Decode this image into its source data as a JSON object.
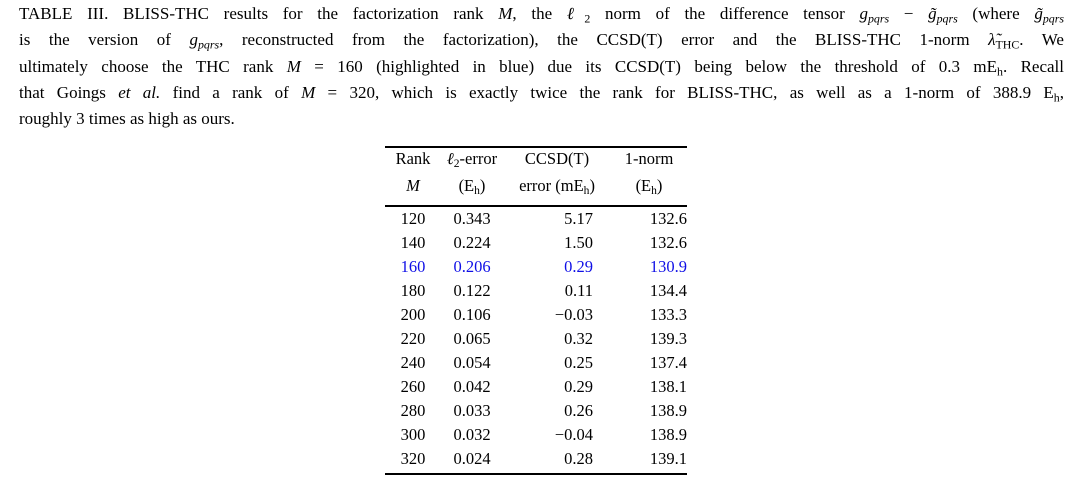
{
  "colors": {
    "background": "#ffffff",
    "text": "#000000",
    "rule": "#000000",
    "highlight_blue": "#0f0fe6"
  },
  "caption": {
    "lines": [
      {
        "justify": true,
        "segments": [
          {
            "t": "TABLE III. BLISS-THC results for the factorization rank "
          },
          {
            "t": "M",
            "s": "i"
          },
          {
            "t": ", the "
          },
          {
            "t": "ℓ",
            "s": "i"
          },
          {
            "t": "2",
            "s": "sub"
          },
          {
            "t": " norm of the difference tensor "
          },
          {
            "t": "g",
            "s": "i"
          },
          {
            "t": "pqrs",
            "s": "isub"
          },
          {
            "t": " − "
          },
          {
            "t": "g̃",
            "s": "i"
          },
          {
            "t": "pqrs",
            "s": "isub"
          },
          {
            "t": " (where "
          },
          {
            "t": "g̃",
            "s": "i"
          },
          {
            "t": "pqrs",
            "s": "isub"
          }
        ]
      },
      {
        "justify": true,
        "segments": [
          {
            "t": "is the version of "
          },
          {
            "t": "g",
            "s": "i"
          },
          {
            "t": "pqrs",
            "s": "isub"
          },
          {
            "t": ", reconstructed from the factorization), the CCSD(T) error and the BLISS-THC 1-norm "
          },
          {
            "t": "λ̃",
            "s": "i"
          },
          {
            "t": "THC",
            "s": "sub"
          },
          {
            "t": ". We"
          }
        ]
      },
      {
        "justify": true,
        "segments": [
          {
            "t": "ultimately choose the THC rank "
          },
          {
            "t": "M",
            "s": "i"
          },
          {
            "t": " = 160 (highlighted in blue) due its CCSD(T) being below the threshold of 0.3 mE"
          },
          {
            "t": "h",
            "s": "sub"
          },
          {
            "t": ". Recall"
          }
        ]
      },
      {
        "justify": true,
        "segments": [
          {
            "t": "that Goings "
          },
          {
            "t": "et al.",
            "s": "i"
          },
          {
            "t": " find a rank of "
          },
          {
            "t": "M",
            "s": "i"
          },
          {
            "t": " = 320, which is exactly twice the rank for BLISS-THC, as well as a 1-norm of 388.9 E"
          },
          {
            "t": "h",
            "s": "sub"
          },
          {
            "t": ","
          }
        ]
      },
      {
        "justify": false,
        "segments": [
          {
            "t": "roughly 3 times as high as ours."
          }
        ]
      }
    ]
  },
  "table": {
    "header": {
      "columns": [
        {
          "name": "rank",
          "line1": [
            {
              "t": "Rank"
            }
          ],
          "line2": [
            {
              "t": "M",
              "s": "i"
            }
          ]
        },
        {
          "name": "l2-error",
          "line1": [
            {
              "t": "ℓ",
              "s": "i"
            },
            {
              "t": "2",
              "s": "sub"
            },
            {
              "t": "-error"
            }
          ],
          "line2": [
            {
              "t": "(E"
            },
            {
              "t": "h",
              "s": "sub"
            },
            {
              "t": ")"
            }
          ]
        },
        {
          "name": "ccsdt-error",
          "line1": [
            {
              "t": "CCSD(T)"
            }
          ],
          "line2": [
            {
              "t": "error (mE"
            },
            {
              "t": "h",
              "s": "sub"
            },
            {
              "t": ")"
            }
          ]
        },
        {
          "name": "one-norm",
          "line1": [
            {
              "t": "1-norm"
            }
          ],
          "line2": [
            {
              "t": "(E"
            },
            {
              "t": "h",
              "s": "sub"
            },
            {
              "t": ")"
            }
          ]
        }
      ]
    },
    "rows": [
      {
        "rank": "120",
        "l2_error": "0.343",
        "ccsdt_error": "5.17",
        "one_norm": "132.6",
        "highlight": false
      },
      {
        "rank": "140",
        "l2_error": "0.224",
        "ccsdt_error": "1.50",
        "one_norm": "132.6",
        "highlight": false
      },
      {
        "rank": "160",
        "l2_error": "0.206",
        "ccsdt_error": "0.29",
        "one_norm": "130.9",
        "highlight": true
      },
      {
        "rank": "180",
        "l2_error": "0.122",
        "ccsdt_error": "0.11",
        "one_norm": "134.4",
        "highlight": false
      },
      {
        "rank": "200",
        "l2_error": "0.106",
        "ccsdt_error": "−0.03",
        "one_norm": "133.3",
        "highlight": false
      },
      {
        "rank": "220",
        "l2_error": "0.065",
        "ccsdt_error": "0.32",
        "one_norm": "139.3",
        "highlight": false
      },
      {
        "rank": "240",
        "l2_error": "0.054",
        "ccsdt_error": "0.25",
        "one_norm": "137.4",
        "highlight": false
      },
      {
        "rank": "260",
        "l2_error": "0.042",
        "ccsdt_error": "0.29",
        "one_norm": "138.1",
        "highlight": false
      },
      {
        "rank": "280",
        "l2_error": "0.033",
        "ccsdt_error": "0.26",
        "one_norm": "138.9",
        "highlight": false
      },
      {
        "rank": "300",
        "l2_error": "0.032",
        "ccsdt_error": "−0.04",
        "one_norm": "138.9",
        "highlight": false
      },
      {
        "rank": "320",
        "l2_error": "0.024",
        "ccsdt_error": "0.28",
        "one_norm": "139.1",
        "highlight": false
      }
    ]
  }
}
